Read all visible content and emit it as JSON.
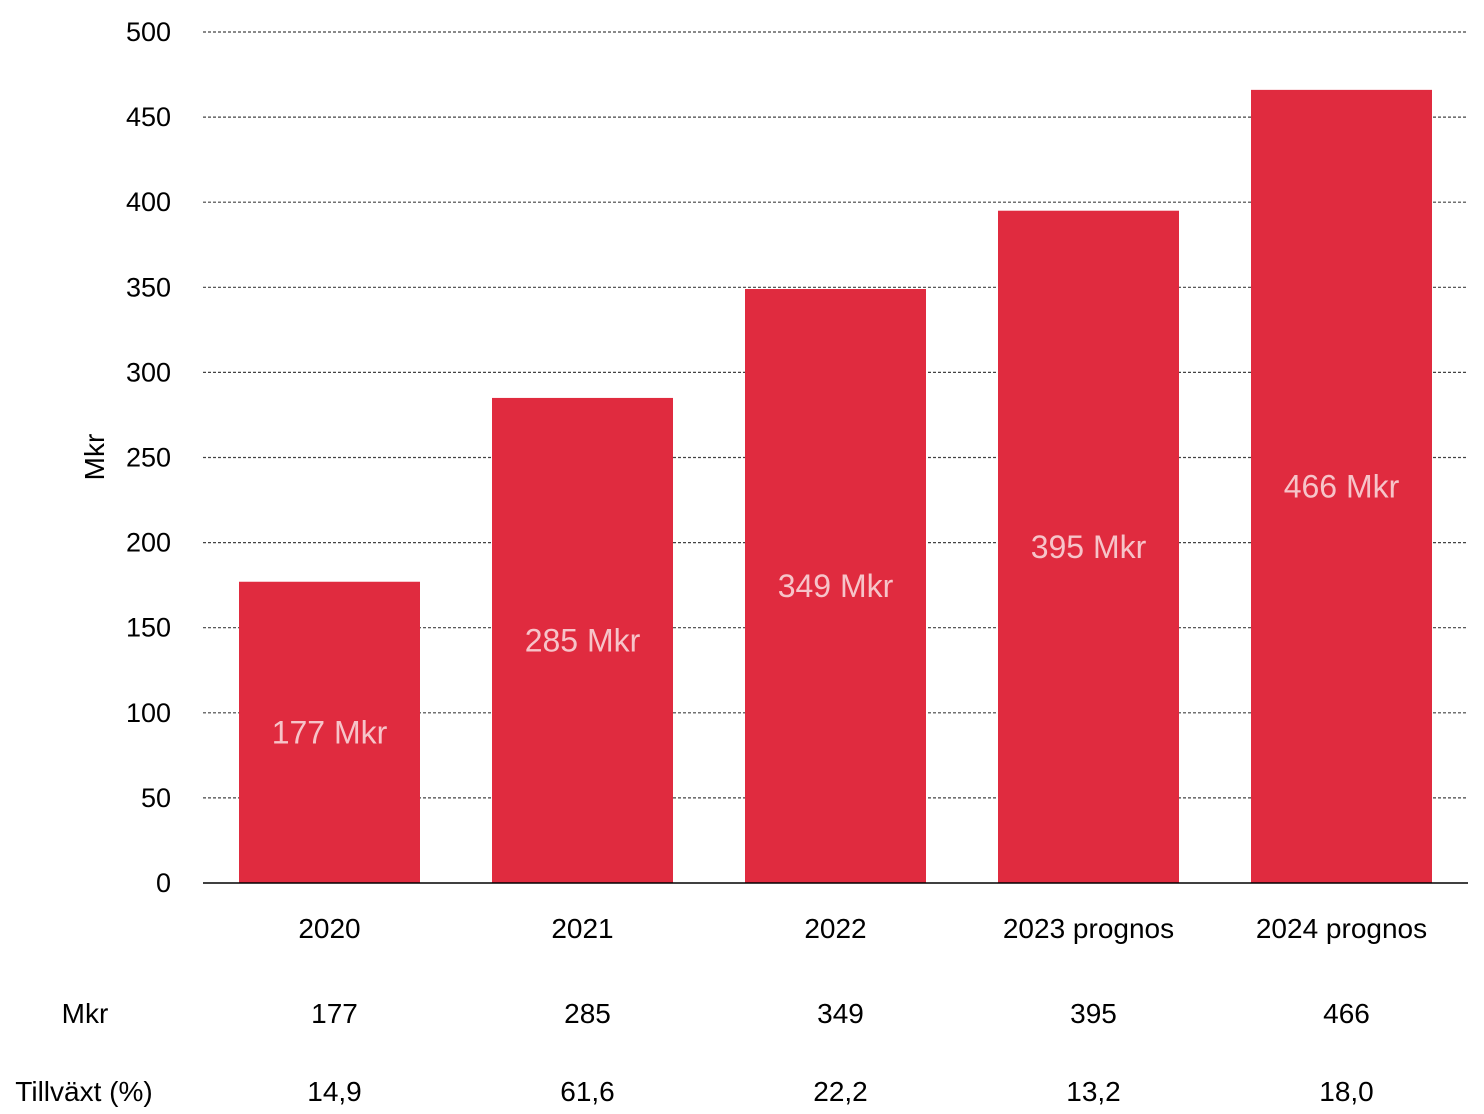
{
  "chart_data": {
    "type": "bar",
    "title": "",
    "xlabel": "",
    "ylabel": "Mkr",
    "ylim": [
      0,
      500
    ],
    "yticks": [
      0,
      50,
      100,
      150,
      200,
      250,
      300,
      350,
      400,
      450,
      500
    ],
    "grid": true,
    "categories": [
      "2020",
      "2021",
      "2022",
      "2023 prognos",
      "2024 prognos"
    ],
    "values": [
      177,
      285,
      349,
      395,
      466
    ],
    "data_labels": [
      "177 Mkr",
      "285 Mkr",
      "349 Mkr",
      "395 Mkr",
      "466 Mkr"
    ],
    "bar_color": "#E02B3F",
    "data_label_color": "#F6C4C9"
  },
  "table": {
    "rows": [
      {
        "label": "Mkr",
        "values": [
          "177",
          "285",
          "349",
          "395",
          "466"
        ]
      },
      {
        "label": "Tillväxt (%)",
        "values": [
          "14,9",
          "61,6",
          "22,2",
          "13,2",
          "18,0"
        ]
      }
    ]
  }
}
